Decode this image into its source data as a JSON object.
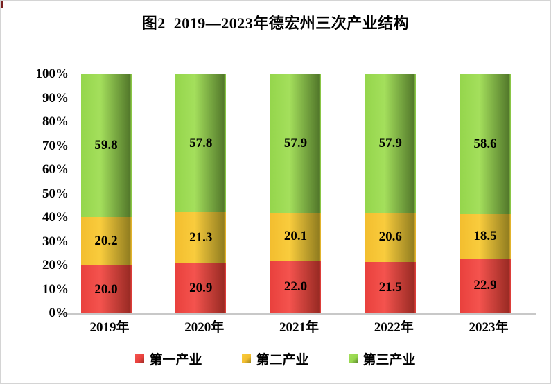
{
  "page": {
    "background": "#ffffff",
    "border_color": "#d4d4d4"
  },
  "chart_data": {
    "type": "bar",
    "stacked": true,
    "stacked_percent": true,
    "title": "图2  2019—2023年德宏州三次产业结构",
    "categories": [
      "2019年",
      "2020年",
      "2021年",
      "2022年",
      "2023年"
    ],
    "series": [
      {
        "name": "第一产业",
        "values": [
          20.0,
          20.9,
          22.0,
          21.5,
          22.9
        ],
        "labels": [
          "20.0",
          "20.9",
          "22.0",
          "21.5",
          "22.9"
        ],
        "color": "#e9413d",
        "color_light": "#f4534e",
        "color_dark": "#9a2b24"
      },
      {
        "name": "第二产业",
        "values": [
          20.2,
          21.3,
          20.1,
          20.6,
          18.5
        ],
        "labels": [
          "20.2",
          "21.3",
          "20.1",
          "20.6",
          "18.5"
        ],
        "color": "#f3be2f",
        "color_light": "#f9cc3d",
        "color_dark": "#927e20"
      },
      {
        "name": "第三产业",
        "values": [
          59.8,
          57.8,
          57.9,
          57.9,
          58.6
        ],
        "labels": [
          "59.8",
          "57.8",
          "57.9",
          "57.9",
          "58.6"
        ],
        "color": "#95d64c",
        "color_light": "#a4df5c",
        "color_dark": "#53792b"
      }
    ],
    "y_axis": {
      "ticks": [
        "0%",
        "10%",
        "20%",
        "30%",
        "40%",
        "50%",
        "60%",
        "70%",
        "80%",
        "90%",
        "100%"
      ],
      "min": 0,
      "max": 100,
      "step": 10
    },
    "grid": false,
    "axis_line_color": "#c8c8c8",
    "legend_position": "bottom",
    "data_label_color": "#000000"
  }
}
